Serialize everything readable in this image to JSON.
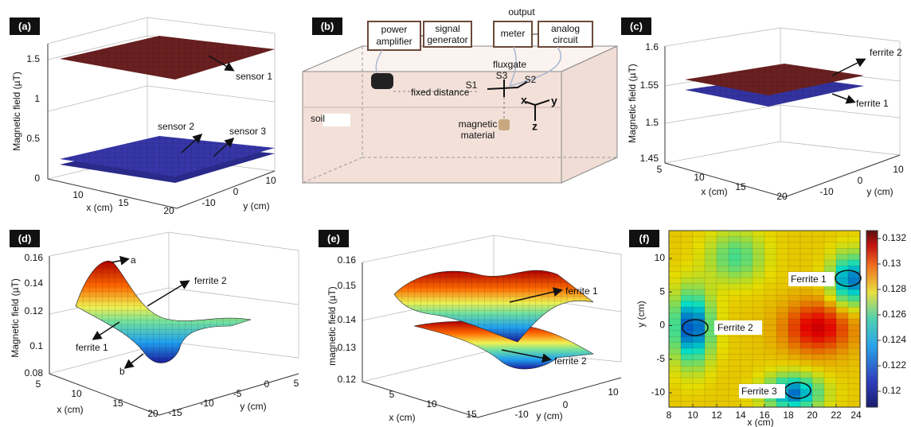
{
  "panels": [
    {
      "label": "(a)",
      "z_label": "Magnetic field (µT)",
      "x_label": "x (cm)",
      "y_label": "y (cm)",
      "z_ticks": [
        0,
        0.5,
        1,
        1.5
      ],
      "x_ticks": [
        10,
        15,
        20
      ],
      "y_ticks": [
        -10,
        0,
        10
      ],
      "annotations": [
        "sensor 1",
        "sensor 2",
        "sensor 3"
      ]
    },
    {
      "label": "(b)",
      "boxes": [
        "power",
        "amplifier",
        "signal",
        "generator",
        "meter",
        "analog",
        "circuit"
      ],
      "texts": [
        "output",
        "fluxgate",
        "S1",
        "S3",
        "S2",
        "fixed distance",
        "soil",
        "magnetic",
        "material",
        "x",
        "y",
        "z"
      ]
    },
    {
      "label": "(c)",
      "z_label": "Magnetic field (µT)",
      "x_label": "x (cm)",
      "y_label": "y (cm)",
      "z_ticks": [
        1.45,
        1.5,
        1.55,
        1.6
      ],
      "x_ticks": [
        5,
        10,
        15,
        20
      ],
      "y_ticks": [
        -10,
        0,
        10
      ],
      "annotations": [
        "ferrite 2",
        "ferrite 1"
      ]
    },
    {
      "label": "(d)",
      "z_label": "Magnetic field (µT)",
      "x_label": "x (cm)",
      "y_label": "y (cm)",
      "z_ticks": [
        0.08,
        0.1,
        0.12,
        0.14,
        0.16
      ],
      "x_ticks": [
        5,
        10,
        15,
        20
      ],
      "y_ticks": [
        -15,
        -10,
        -5,
        0,
        5
      ],
      "annotations": [
        "a",
        "b",
        "ferrite 2",
        "ferrite 1"
      ]
    },
    {
      "label": "(e)",
      "z_label": "magnetic field (µT)",
      "x_label": "x (cm)",
      "y_label": "y (cm)",
      "z_ticks": [
        0.12,
        0.13,
        0.14,
        0.15,
        0.16
      ],
      "x_ticks": [
        5,
        10,
        15
      ],
      "y_ticks": [
        -10,
        0,
        10
      ],
      "annotations": [
        "ferrite 1",
        "ferrite 2"
      ]
    },
    {
      "label": "(f)",
      "x_label": "x (cm)",
      "y_label": "y (cm)",
      "x_ticks": [
        8,
        10,
        12,
        14,
        16,
        18,
        20,
        22,
        24
      ],
      "y_ticks": [
        -10,
        -5,
        0,
        5,
        10
      ],
      "colorbar_ticks": [
        0.12,
        0.122,
        0.124,
        0.126,
        0.128,
        0.13,
        0.132
      ],
      "annotations": [
        "Ferrite 1",
        "Ferrite 2",
        "Ferrite 3"
      ]
    }
  ]
}
